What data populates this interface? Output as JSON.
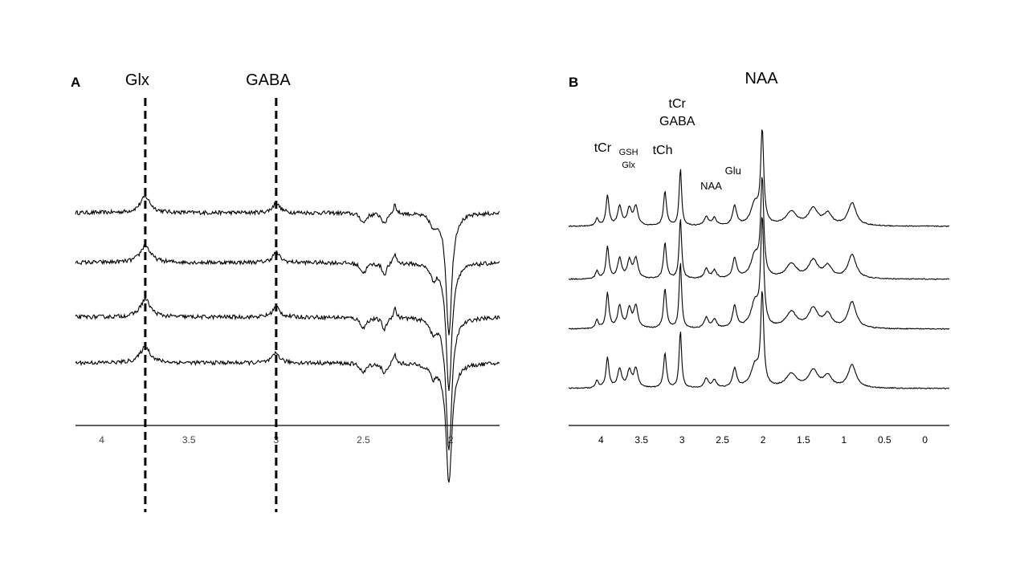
{
  "chart_data": [
    {
      "type": "line",
      "panel_label": "A",
      "title": "",
      "xlabel": "",
      "ylabel": "",
      "x_reversed": true,
      "xlim": [
        4.15,
        1.72
      ],
      "x_ticks": [
        4,
        3.5,
        3,
        2.5,
        2
      ],
      "x_tick_labels": [
        "4",
        "3.5",
        "3",
        "2.5",
        "2"
      ],
      "markers": [
        {
          "label": "Glx",
          "x": 3.75
        },
        {
          "label": "GABA",
          "x": 3.0
        }
      ],
      "n_spectra": 4,
      "peaks": [
        {
          "x": 3.75,
          "width": 0.035,
          "amplitude": 20
        },
        {
          "x": 3.0,
          "width": 0.025,
          "amplitude": 12
        },
        {
          "x": 2.5,
          "width": 0.02,
          "amplitude": -12
        },
        {
          "x": 2.38,
          "width": 0.015,
          "amplitude": -14
        },
        {
          "x": 2.32,
          "width": 0.01,
          "amplitude": 12
        },
        {
          "x": 2.1,
          "width": 0.02,
          "amplitude": -15
        },
        {
          "x": 2.01,
          "width": 0.02,
          "amplitude": -150
        }
      ],
      "ylim": [
        -190,
        40
      ]
    },
    {
      "type": "line",
      "panel_label": "B",
      "title": "",
      "xlabel": "",
      "ylabel": "",
      "x_reversed": true,
      "xlim": [
        4.4,
        -0.3
      ],
      "x_ticks": [
        4,
        3.5,
        3,
        2.5,
        2,
        1.5,
        1,
        0.5,
        0
      ],
      "x_tick_labels": [
        "4",
        "3.5",
        "3",
        "2.5",
        "2",
        "1.5",
        "1",
        "0.5",
        "0"
      ],
      "annotations": [
        {
          "text": "NAA",
          "x": 2.0,
          "size": "large"
        },
        {
          "text": "tCr",
          "x": 3.0,
          "size": "medium"
        },
        {
          "text": "GABA",
          "x": 3.0,
          "size": "medium"
        },
        {
          "text": "tCr",
          "x": 3.92,
          "size": "medium"
        },
        {
          "text": "GSH",
          "x": 3.7,
          "size": "small"
        },
        {
          "text": "Glx",
          "x": 3.7,
          "size": "small"
        },
        {
          "text": "tCh",
          "x": 3.2,
          "size": "medium"
        },
        {
          "text": "NAA",
          "x": 2.6,
          "size": "small"
        },
        {
          "text": "Glu",
          "x": 2.35,
          "size": "small"
        }
      ],
      "n_spectra": 4,
      "peaks": [
        {
          "x": 4.05,
          "width": 0.02,
          "amplitude": 10
        },
        {
          "x": 3.92,
          "width": 0.022,
          "amplitude": 40
        },
        {
          "x": 3.77,
          "width": 0.03,
          "amplitude": 25
        },
        {
          "x": 3.65,
          "width": 0.03,
          "amplitude": 22
        },
        {
          "x": 3.57,
          "width": 0.03,
          "amplitude": 25
        },
        {
          "x": 3.21,
          "width": 0.022,
          "amplitude": 45
        },
        {
          "x": 3.02,
          "width": 0.018,
          "amplitude": 75
        },
        {
          "x": 2.7,
          "width": 0.03,
          "amplitude": 12
        },
        {
          "x": 2.6,
          "width": 0.03,
          "amplitude": 10
        },
        {
          "x": 2.35,
          "width": 0.03,
          "amplitude": 25
        },
        {
          "x": 2.1,
          "width": 0.06,
          "amplitude": 28
        },
        {
          "x": 2.01,
          "width": 0.022,
          "amplitude": 120
        },
        {
          "x": 1.65,
          "width": 0.08,
          "amplitude": 18
        },
        {
          "x": 1.38,
          "width": 0.07,
          "amplitude": 22
        },
        {
          "x": 1.2,
          "width": 0.06,
          "amplitude": 15
        },
        {
          "x": 0.9,
          "width": 0.06,
          "amplitude": 30
        }
      ],
      "ylim": [
        -10,
        160
      ]
    }
  ]
}
